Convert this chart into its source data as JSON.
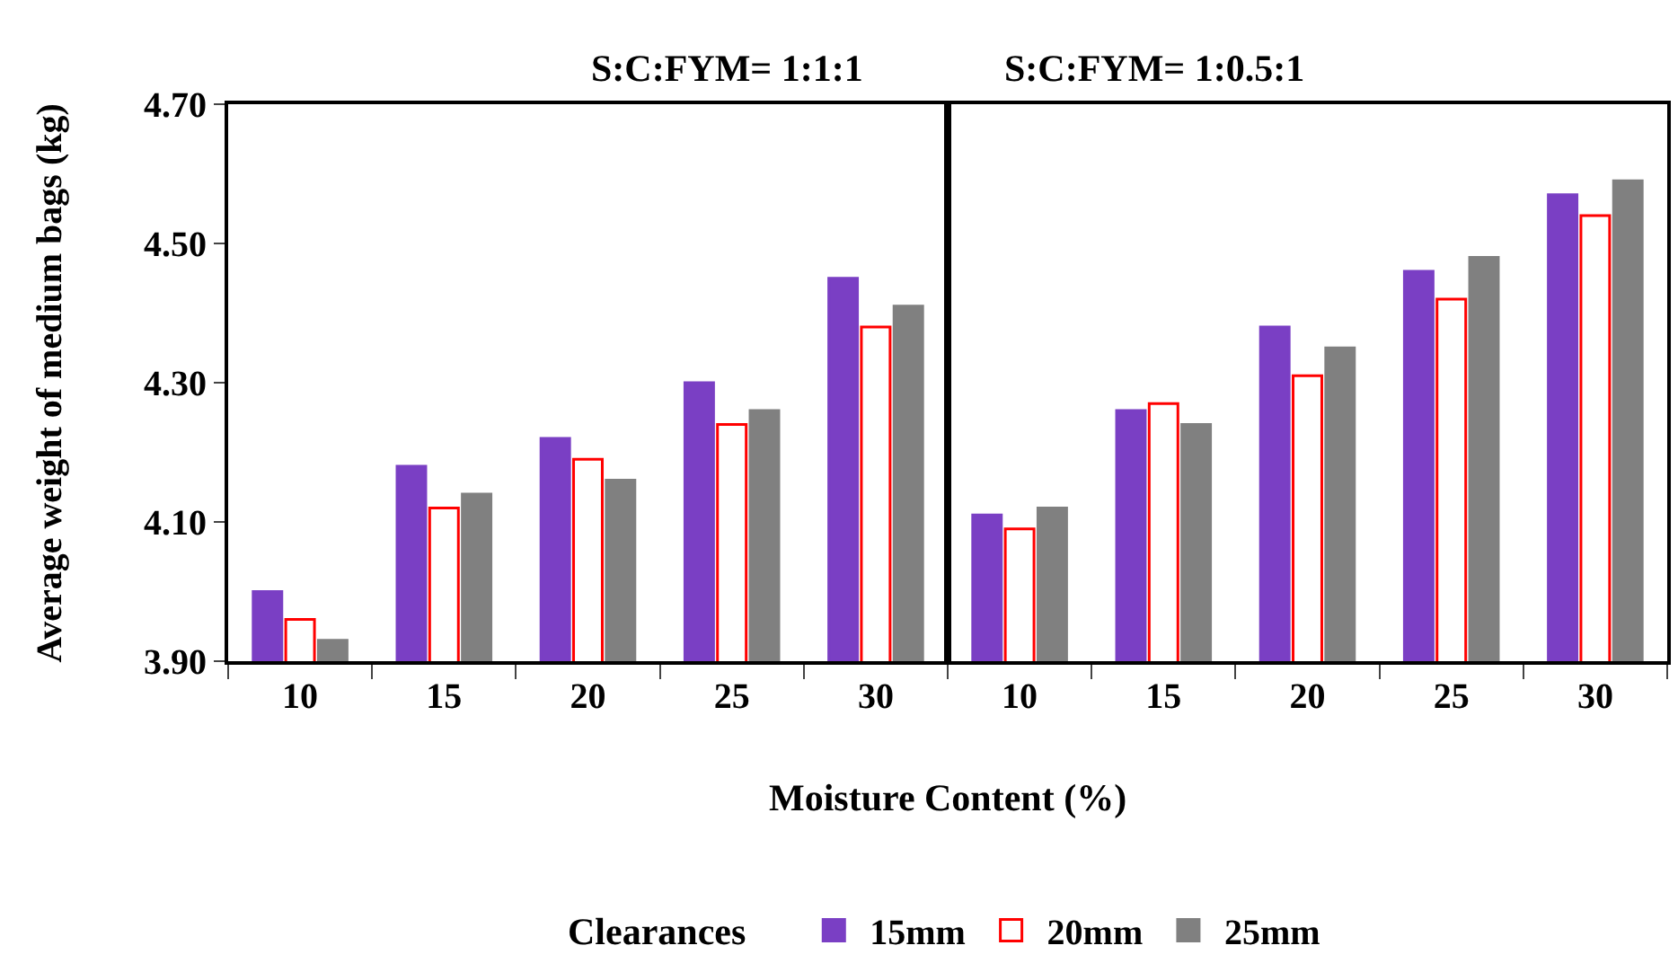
{
  "chart_data": [
    {
      "type": "bar",
      "title": "S:C:FYM= 1:1:1",
      "xlabel": "Moisture Content (%)",
      "ylabel": "Average weight of medium bags (kg)",
      "legend_title": "Clearances",
      "legend": "bottom",
      "categories": [
        "10",
        "15",
        "20",
        "25",
        "30"
      ],
      "ylim": [
        3.9,
        4.7
      ],
      "yticks": [
        {
          "value": 3.9,
          "label": "3.90"
        },
        {
          "value": 4.1,
          "label": "4.10"
        },
        {
          "value": 4.3,
          "label": "4.30"
        },
        {
          "value": 4.5,
          "label": "4.50"
        },
        {
          "value": 4.7,
          "label": "4.70"
        }
      ],
      "series": [
        {
          "name": "15mm",
          "color": "#7a3fc4",
          "values": [
            4.0,
            4.18,
            4.22,
            4.3,
            4.45
          ]
        },
        {
          "name": "20mm",
          "color": "#ffffff",
          "values": [
            3.96,
            4.12,
            4.19,
            4.24,
            4.38
          ]
        },
        {
          "name": "25mm",
          "color": "#808080",
          "values": [
            3.93,
            4.14,
            4.16,
            4.26,
            4.41
          ]
        }
      ]
    },
    {
      "type": "bar",
      "title": "S:C:FYM= 1:0.5:1",
      "categories": [
        "10",
        "15",
        "20",
        "25",
        "30"
      ],
      "ylim": [
        3.9,
        4.7
      ],
      "tick_labels": "x",
      "series": [
        {
          "color": "#7a3fc4",
          "values": [
            4.11,
            4.26,
            4.38,
            4.46,
            4.57
          ]
        },
        {
          "color": "#ffffff",
          "values": [
            4.09,
            4.27,
            4.31,
            4.42,
            4.54
          ]
        },
        {
          "color": "#808080",
          "values": [
            4.12,
            4.24,
            4.35,
            4.48,
            4.59
          ]
        }
      ]
    }
  ]
}
